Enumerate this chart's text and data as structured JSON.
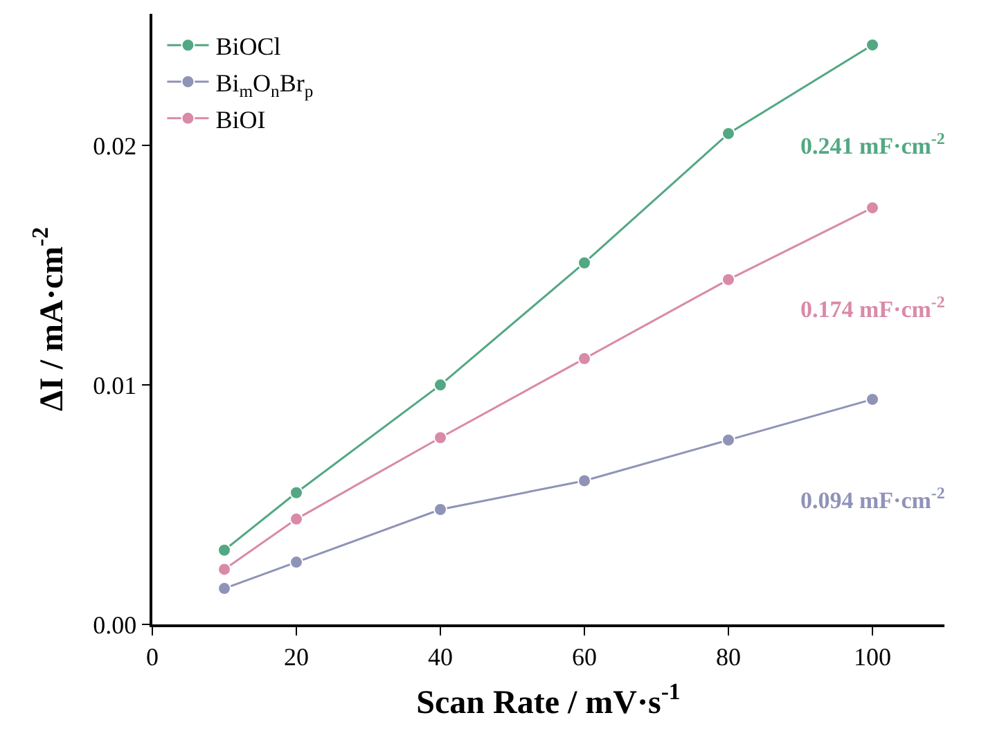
{
  "chart_data": {
    "type": "line",
    "xlabel": "Scan Rate / mV·s$^{-1}$",
    "ylabel": "ΔI / mA·cm$^{-2}$",
    "x": [
      10,
      20,
      40,
      60,
      80,
      100
    ],
    "series": [
      {
        "name": "BiOCl",
        "color": "#52a882",
        "values": [
          0.0031,
          0.0055,
          0.01,
          0.0151,
          0.0205,
          0.0242
        ]
      },
      {
        "name": "Bi$_{m}$O$_{n}$Br$_{p}$",
        "color": "#8f93b8",
        "values": [
          0.0015,
          0.0026,
          0.0048,
          0.006,
          0.0077,
          0.0094
        ]
      },
      {
        "name": "BiOI",
        "color": "#d98aa8",
        "values": [
          0.0023,
          0.0044,
          0.0078,
          0.0111,
          0.0144,
          0.0174
        ]
      }
    ],
    "annotations": [
      "0.241 mF·cm$^{-2}$",
      "0.094 mF·cm$^{-2}$",
      "0.174 mF·cm$^{-2}$"
    ],
    "xlim": [
      0,
      110
    ],
    "ylim": [
      0,
      0.0255
    ],
    "xticks": [
      0,
      20,
      40,
      60,
      80,
      100
    ],
    "yticks": [
      {
        "value": 0,
        "label": "0.00"
      },
      {
        "value": 0.01,
        "label": "0.01"
      },
      {
        "value": 0.02,
        "label": "0.02"
      }
    ],
    "legend": "top left",
    "marker": "circle",
    "line_style": "solid"
  }
}
